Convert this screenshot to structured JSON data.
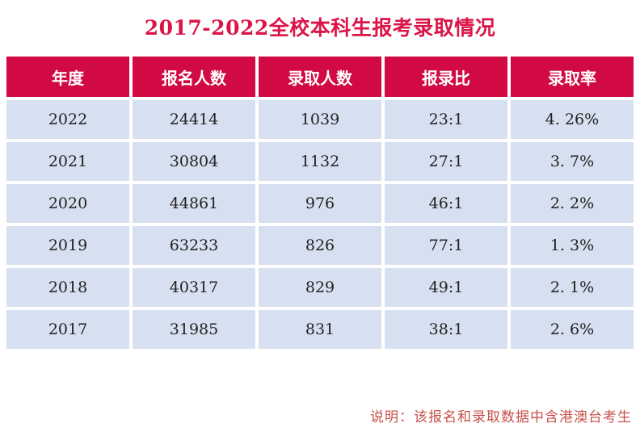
{
  "title": "2017-2022全校本科生报考录取情况",
  "colors": {
    "header_bg": "#d20a43",
    "cell_bg": "#d7e0f0",
    "title_red": "#db1448",
    "footer_red": "#c75048"
  },
  "table": {
    "columns": [
      "年度",
      "报名人数",
      "录取人数",
      "报录比",
      "录取率"
    ],
    "rows": [
      [
        "2022",
        "24414",
        "1039",
        "23:1",
        "4. 26%"
      ],
      [
        "2021",
        "30804",
        "1132",
        "27:1",
        "3. 7%"
      ],
      [
        "2020",
        "44861",
        "976",
        "46:1",
        "2. 2%"
      ],
      [
        "2019",
        "63233",
        "826",
        "77:1",
        "1. 3%"
      ],
      [
        "2018",
        "40317",
        "829",
        "49:1",
        "2. 1%"
      ],
      [
        "2017",
        "31985",
        "831",
        "38:1",
        "2. 6%"
      ]
    ]
  },
  "footer_note": "说明：该报名和录取数据中含港澳台考生",
  "chart_data": {
    "type": "table",
    "title": "2017-2022全校本科生报考录取情况",
    "columns": [
      "年度",
      "报名人数",
      "录取人数",
      "报录比",
      "录取率"
    ],
    "rows": [
      {
        "year": 2022,
        "applicants": 24414,
        "admitted": 1039,
        "ratio": "23:1",
        "admit_rate_pct": 4.26
      },
      {
        "year": 2021,
        "applicants": 30804,
        "admitted": 1132,
        "ratio": "27:1",
        "admit_rate_pct": 3.7
      },
      {
        "year": 2020,
        "applicants": 44861,
        "admitted": 976,
        "ratio": "46:1",
        "admit_rate_pct": 2.2
      },
      {
        "year": 2019,
        "applicants": 63233,
        "admitted": 826,
        "ratio": "77:1",
        "admit_rate_pct": 1.3
      },
      {
        "year": 2018,
        "applicants": 40317,
        "admitted": 829,
        "ratio": "49:1",
        "admit_rate_pct": 2.1
      },
      {
        "year": 2017,
        "applicants": 31985,
        "admitted": 831,
        "ratio": "38:1",
        "admit_rate_pct": 2.6
      }
    ],
    "note": "说明：该报名和录取数据中含港澳台考生",
    "layout": {
      "header_text_color": "#ffffff",
      "header_bg": "#d20a43",
      "row_bg": "#d7e0f0",
      "grid_gap_color": "#ffffff"
    }
  }
}
